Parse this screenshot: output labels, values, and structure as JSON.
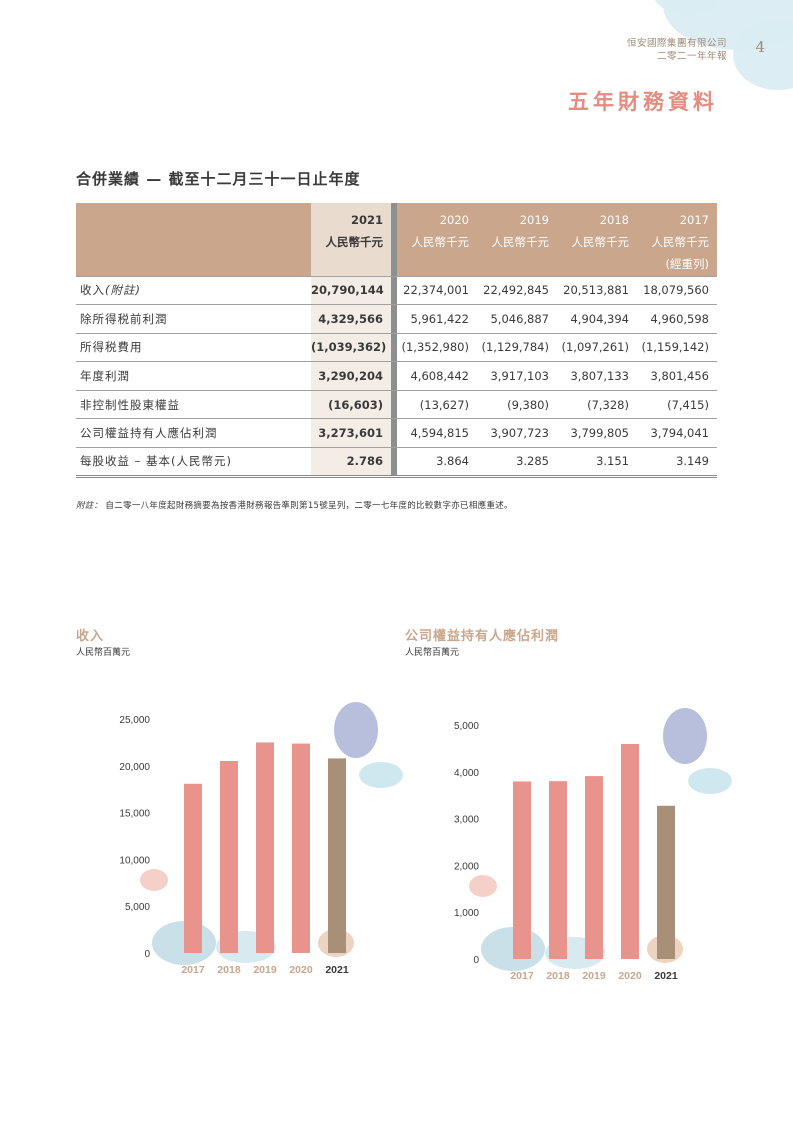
{
  "header": {
    "company": "恒安國際集團有限公司",
    "report": "二零二一年年報",
    "page_number": "4",
    "page_title": "五年財務資料"
  },
  "section_title": "合併業績 — 截至十二月三十一日止年度",
  "table": {
    "columns": [
      {
        "year": "2021",
        "unit": "人民幣千元",
        "note": ""
      },
      {
        "year": "2020",
        "unit": "人民幣千元",
        "note": ""
      },
      {
        "year": "2019",
        "unit": "人民幣千元",
        "note": ""
      },
      {
        "year": "2018",
        "unit": "人民幣千元",
        "note": ""
      },
      {
        "year": "2017",
        "unit": "人民幣千元",
        "note": "(經重列)"
      }
    ],
    "rows": [
      {
        "label": "收入",
        "label_note": "(附註)",
        "values": [
          "20,790,144",
          "22,374,001",
          "22,492,845",
          "20,513,881",
          "18,079,560"
        ]
      },
      {
        "label": "除所得税前利潤",
        "label_note": "",
        "values": [
          "4,329,566",
          "5,961,422",
          "5,046,887",
          "4,904,394",
          "4,960,598"
        ]
      },
      {
        "label": "所得税費用",
        "label_note": "",
        "values": [
          "(1,039,362)",
          "(1,352,980)",
          "(1,129,784)",
          "(1,097,261)",
          "(1,159,142)"
        ]
      },
      {
        "label": "年度利潤",
        "label_note": "",
        "values": [
          "3,290,204",
          "4,608,442",
          "3,917,103",
          "3,807,133",
          "3,801,456"
        ]
      },
      {
        "label": "非控制性股東權益",
        "label_note": "",
        "values": [
          "(16,603)",
          "(13,627)",
          "(9,380)",
          "(7,328)",
          "(7,415)"
        ]
      },
      {
        "label": "公司權益持有人應佔利潤",
        "label_note": "",
        "values": [
          "3,273,601",
          "4,594,815",
          "3,907,723",
          "3,799,805",
          "3,794,041"
        ]
      },
      {
        "label": "每股收益 – 基本(人民幣元)",
        "label_note": "",
        "values": [
          "2.786",
          "3.864",
          "3.285",
          "3.151",
          "3.149"
        ]
      }
    ]
  },
  "footnote": {
    "prefix": "附註：",
    "text": "自二零一八年度起財務摘要為按香港財務報告準則第15號呈列，二零一七年度的比較數字亦已相應重述。"
  },
  "colors": {
    "accent": "#c9a68c",
    "title_pink": "#e58c80",
    "bar_pink": "#e8938b",
    "bar_highlight": "#a89078"
  },
  "chart_data": [
    {
      "type": "bar",
      "title": "收入",
      "subtitle": "人民幣百萬元",
      "categories": [
        "2017",
        "2018",
        "2019",
        "2020",
        "2021"
      ],
      "values": [
        18080,
        20514,
        22493,
        22374,
        20790
      ],
      "highlight": "2021",
      "yticks": [
        "0",
        "5,000",
        "10,000",
        "15,000",
        "20,000",
        "25,000"
      ],
      "ylim": [
        0,
        25000
      ]
    },
    {
      "type": "bar",
      "title": "公司權益持有人應佔利潤",
      "subtitle": "人民幣百萬元",
      "categories": [
        "2017",
        "2018",
        "2019",
        "2020",
        "2021"
      ],
      "values": [
        3794,
        3800,
        3908,
        4595,
        3274
      ],
      "highlight": "2021",
      "yticks": [
        "0",
        "1,000",
        "2,000",
        "3,000",
        "4,000",
        "5,000"
      ],
      "ylim": [
        0,
        5000
      ]
    }
  ]
}
